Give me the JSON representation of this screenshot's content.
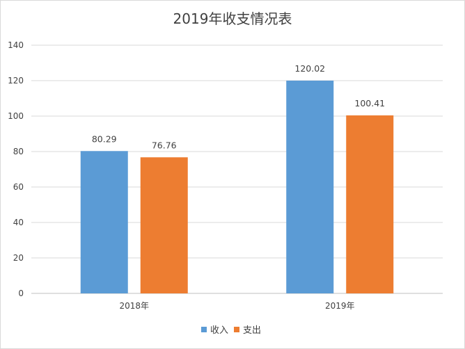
{
  "chart_data": {
    "type": "bar",
    "title": "2019年收支情况表",
    "categories": [
      "2018年",
      "2019年"
    ],
    "series": [
      {
        "name": "收入",
        "values": [
          80.29,
          120.02
        ],
        "color": "#5B9BD5"
      },
      {
        "name": "支出",
        "values": [
          76.76,
          100.41
        ],
        "color": "#ED7D31"
      }
    ],
    "ylim": [
      0,
      140
    ],
    "yticks": [
      "0",
      "20",
      "40",
      "60",
      "80",
      "100",
      "120",
      "140"
    ],
    "data_labels": [
      [
        "80.29",
        "120.02"
      ],
      [
        "76.76",
        "100.41"
      ]
    ],
    "grid": true,
    "legend_position": "bottom"
  }
}
